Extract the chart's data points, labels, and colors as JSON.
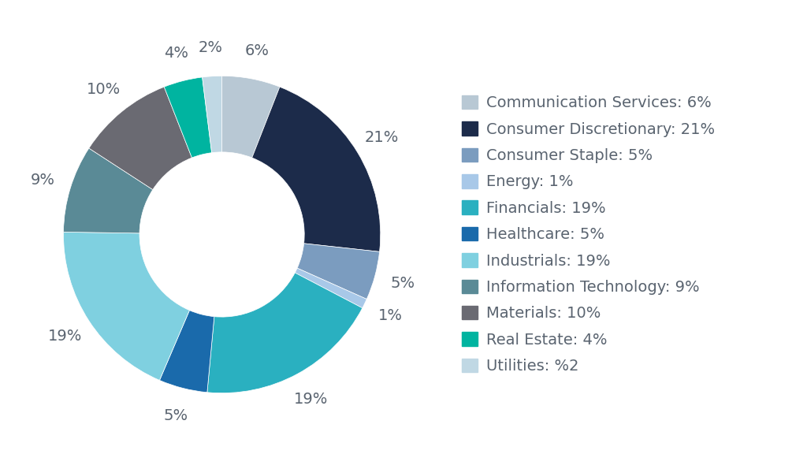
{
  "labels": [
    "Communication Services: 6%",
    "Consumer Discretionary: 21%",
    "Consumer Staple: 5%",
    "Energy: 1%",
    "Financials: 19%",
    "Healthcare: 5%",
    "Industrials: 19%",
    "Information Technology: 9%",
    "Materials: 10%",
    "Real Estate: 4%",
    "Utilities: %2"
  ],
  "values": [
    6,
    21,
    5,
    1,
    19,
    5,
    19,
    9,
    10,
    4,
    2
  ],
  "colors": [
    "#b8c8d4",
    "#1c2b4a",
    "#7b9cbf",
    "#a8c8e8",
    "#2ab0c0",
    "#1a6aab",
    "#7fd0e0",
    "#5a8a96",
    "#6a6a72",
    "#00b4a0",
    "#c0d8e4"
  ],
  "autopct_labels": [
    "6%",
    "21%",
    "5%",
    "1%",
    "19%",
    "5%",
    "19%",
    "9%",
    "10%",
    "4%",
    "2%"
  ],
  "background_color": "#ffffff",
  "text_color": "#5a6470",
  "font_size": 14,
  "legend_fontsize": 14
}
